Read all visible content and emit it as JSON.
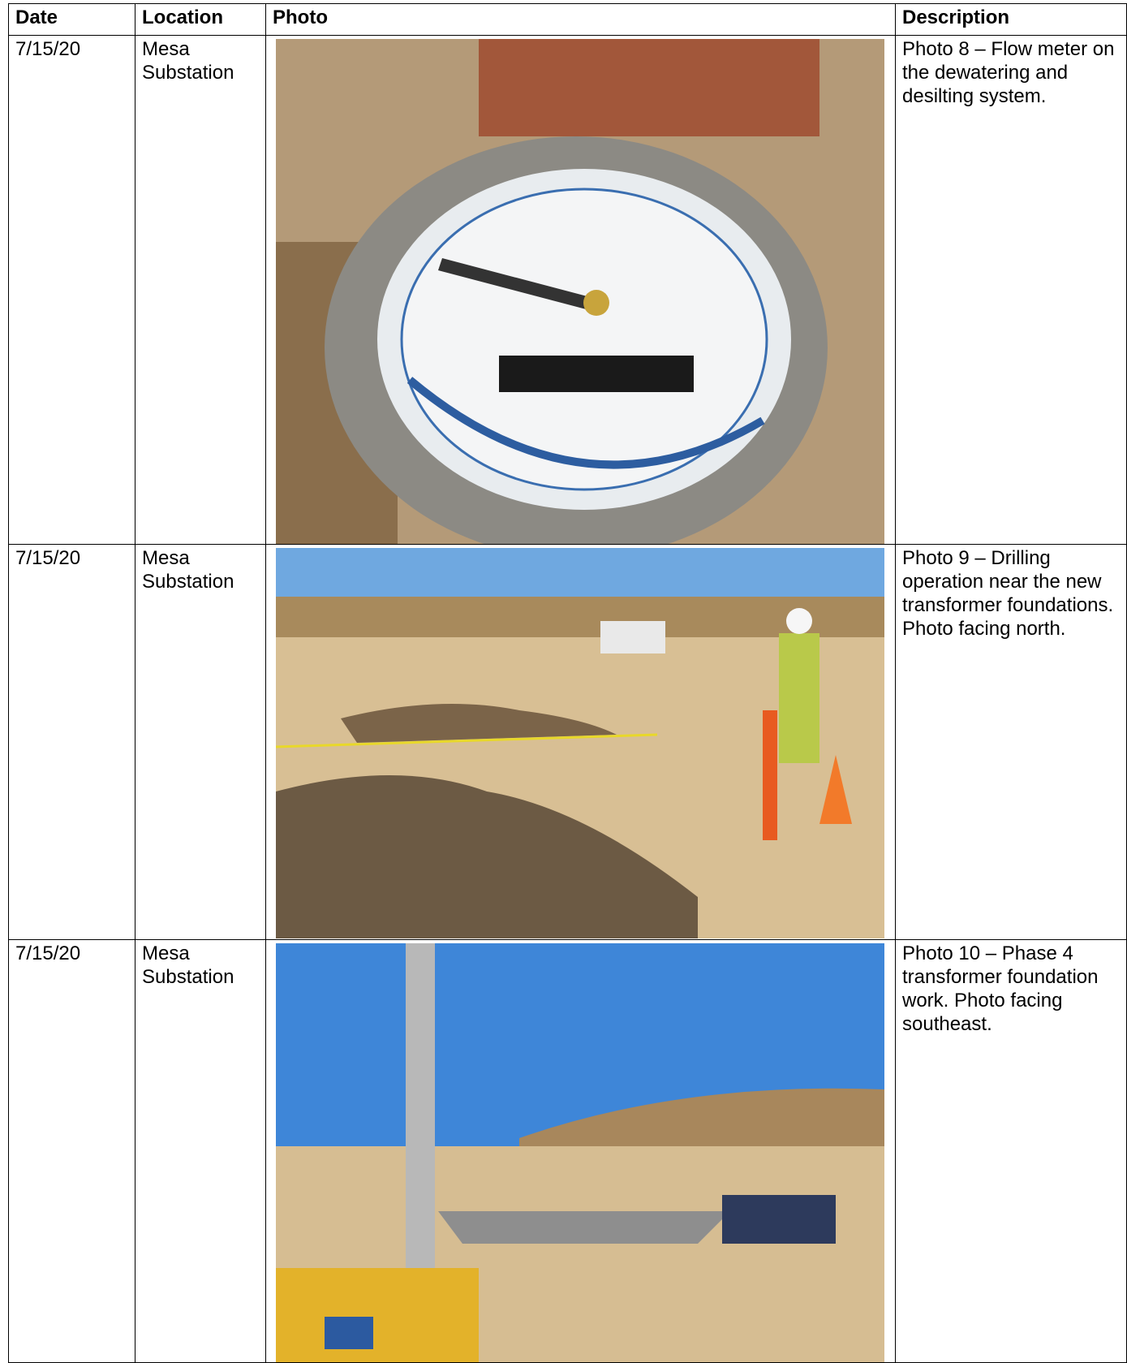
{
  "table": {
    "headers": [
      "Date",
      "Location",
      "Photo",
      "Description"
    ],
    "rows": [
      {
        "date": "7/15/20",
        "location": "Mesa Substation",
        "description": "Photo 8 – Flow meter on the dewatering and desilting system."
      },
      {
        "date": "7/15/20",
        "location": "Mesa Substation",
        "description": "Photo 9 – Drilling operation near the new transformer foundations. Photo facing north."
      },
      {
        "date": "7/15/20",
        "location": "Mesa Substation",
        "description": "Photo 10 – Phase 4 transformer foundation work. Photo facing southeast."
      }
    ]
  }
}
